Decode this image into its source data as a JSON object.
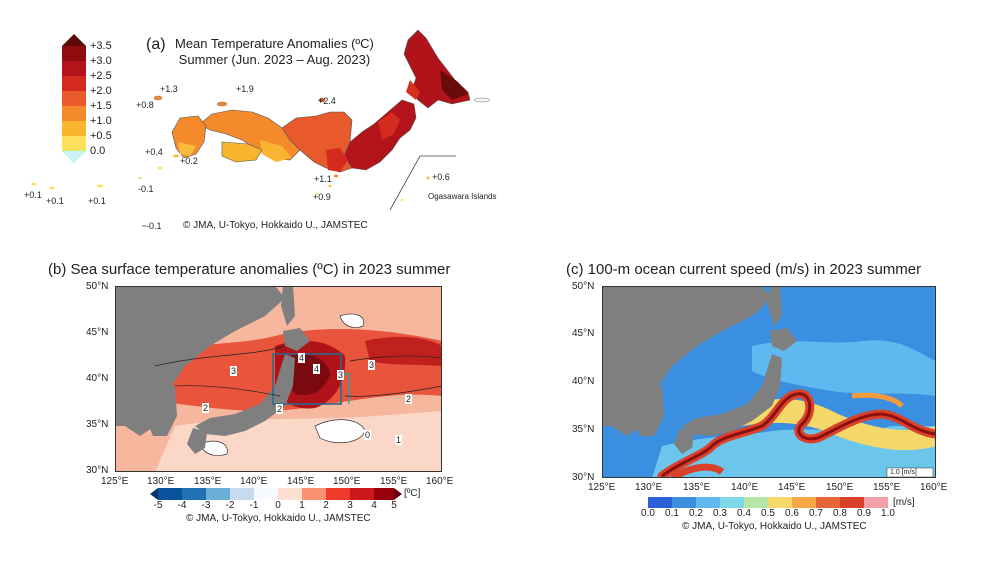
{
  "panel_a": {
    "letter": "(a)",
    "title_line1": "Mean Temperature Anomalies (ºC)",
    "title_line2": "Summer (Jun. 2023 – Aug. 2023)",
    "colorbar_labels": [
      "+3.5",
      "+3.0",
      "+2.5",
      "+2.0",
      "+1.5",
      "+1.0",
      "+0.5",
      "0.0"
    ],
    "colorbar_colors": [
      "#6b0a0a",
      "#a50f15",
      "#d7301f",
      "#ef6548",
      "#fc8d59",
      "#fdbb3b",
      "#fee08b",
      "#ccf2f8"
    ],
    "anomaly_labels": [
      "+1.3",
      "+0.8",
      "+1.9",
      "+2.4",
      "+0.4",
      "+0.2",
      "-0.1",
      "+0.1",
      "+0.1",
      "+0.1",
      "+1.1",
      "+0.9",
      "+0.6",
      "-0.1"
    ],
    "ogasawara_label": "Ogasawara Islands",
    "credit": "© JMA, U-Tokyo, Hokkaido U., JAMSTEC"
  },
  "panel_b": {
    "title": "(b) Sea surface temperature anomalies (ºC) in 2023 summer",
    "lat_labels": [
      "50°N",
      "45°N",
      "40°N",
      "35°N",
      "30°N"
    ],
    "lon_labels": [
      "125°E",
      "130°E",
      "135°E",
      "140°E",
      "145°E",
      "150°E",
      "155°E",
      "160°E"
    ],
    "colorbar_ticks": [
      "-5",
      "-4",
      "-3",
      "-2",
      "-1",
      "0",
      "1",
      "2",
      "3",
      "4",
      "5"
    ],
    "colorbar_unit": "[ºC]",
    "contour_labels": [
      "4",
      "4",
      "3",
      "3",
      "2",
      "2",
      "3",
      "2",
      "0",
      "1"
    ],
    "credit": "© JMA, U-Tokyo, Hokkaido U., JAMSTEC"
  },
  "panel_c": {
    "title": "(c) 100-m ocean current speed (m/s) in 2023 summer",
    "lat_labels": [
      "50°N",
      "45°N",
      "40°N",
      "35°N",
      "30°N"
    ],
    "lon_labels": [
      "125°E",
      "130°E",
      "135°E",
      "140°E",
      "145°E",
      "150°E",
      "155°E",
      "160°E"
    ],
    "colorbar_ticks": [
      "0.0",
      "0.1",
      "0.2",
      "0.3",
      "0.4",
      "0.5",
      "0.6",
      "0.7",
      "0.8",
      "0.9",
      "1.0"
    ],
    "colorbar_unit": "[m/s]",
    "vector_key": "1.0 [m/s]",
    "credit": "© JMA, U-Tokyo, Hokkaido U., JAMSTEC"
  }
}
